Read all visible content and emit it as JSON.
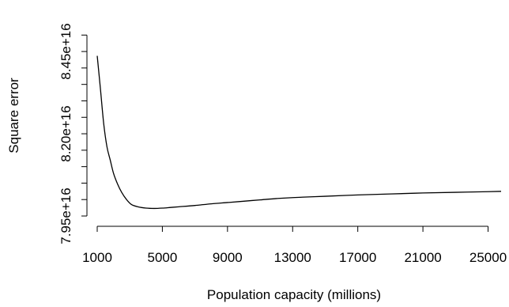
{
  "chart_data": {
    "type": "line",
    "title": "",
    "xlabel": "Population capacity (millions)",
    "ylabel": "Square error",
    "xlim": [
      1000,
      25800
    ],
    "ylim": [
      7.95e+16,
      8.52e+16
    ],
    "grid": false,
    "legend": "none",
    "x_ticks": [
      {
        "value": 1000,
        "label": "1000"
      },
      {
        "value": 5000,
        "label": "5000"
      },
      {
        "value": 9000,
        "label": "9000"
      },
      {
        "value": 13000,
        "label": "13000"
      },
      {
        "value": 17000,
        "label": "17000"
      },
      {
        "value": 21000,
        "label": "21000"
      },
      {
        "value": 25000,
        "label": "25000"
      }
    ],
    "y_ticks": [
      {
        "value": 7.95e+16,
        "label": "7.95e+16"
      },
      {
        "value": 8e+16,
        "label": ""
      },
      {
        "value": 8.05e+16,
        "label": ""
      },
      {
        "value": 8.1e+16,
        "label": ""
      },
      {
        "value": 8.15e+16,
        "label": ""
      },
      {
        "value": 8.2e+16,
        "label": "8.20e+16"
      },
      {
        "value": 8.25e+16,
        "label": ""
      },
      {
        "value": 8.3e+16,
        "label": ""
      },
      {
        "value": 8.35e+16,
        "label": ""
      },
      {
        "value": 8.4e+16,
        "label": ""
      },
      {
        "value": 8.45e+16,
        "label": "8.45e+16"
      },
      {
        "value": 8.5e+16,
        "label": ""
      }
    ],
    "series": [
      {
        "color": "#000000",
        "x": [
          1000,
          1200,
          1400,
          1600,
          1800,
          2000,
          2250,
          2500,
          2800,
          3100,
          3500,
          4000,
          4500,
          5000,
          5500,
          6000,
          7000,
          8000,
          9000,
          10000,
          11000,
          12000,
          13000,
          15000,
          17000,
          19000,
          21000,
          23000,
          25000,
          25800
        ],
        "y": [
          8.437e+16,
          8.335e+16,
          8.23e+16,
          8.16e+16,
          8.12e+16,
          8.08e+16,
          8.047e+16,
          8.022e+16,
          8e+16,
          7.985e+16,
          7.978e+16,
          7.974e+16,
          7.973e+16,
          7.974e+16,
          7.976e+16,
          7.978e+16,
          7.982e+16,
          7.987e+16,
          7.991e+16,
          7.995e+16,
          7.999e+16,
          8.003e+16,
          8.006e+16,
          8.01e+16,
          8.014e+16,
          8.017e+16,
          8.02e+16,
          8.022e+16,
          8.024e+16,
          8.025e+16
        ]
      }
    ]
  }
}
